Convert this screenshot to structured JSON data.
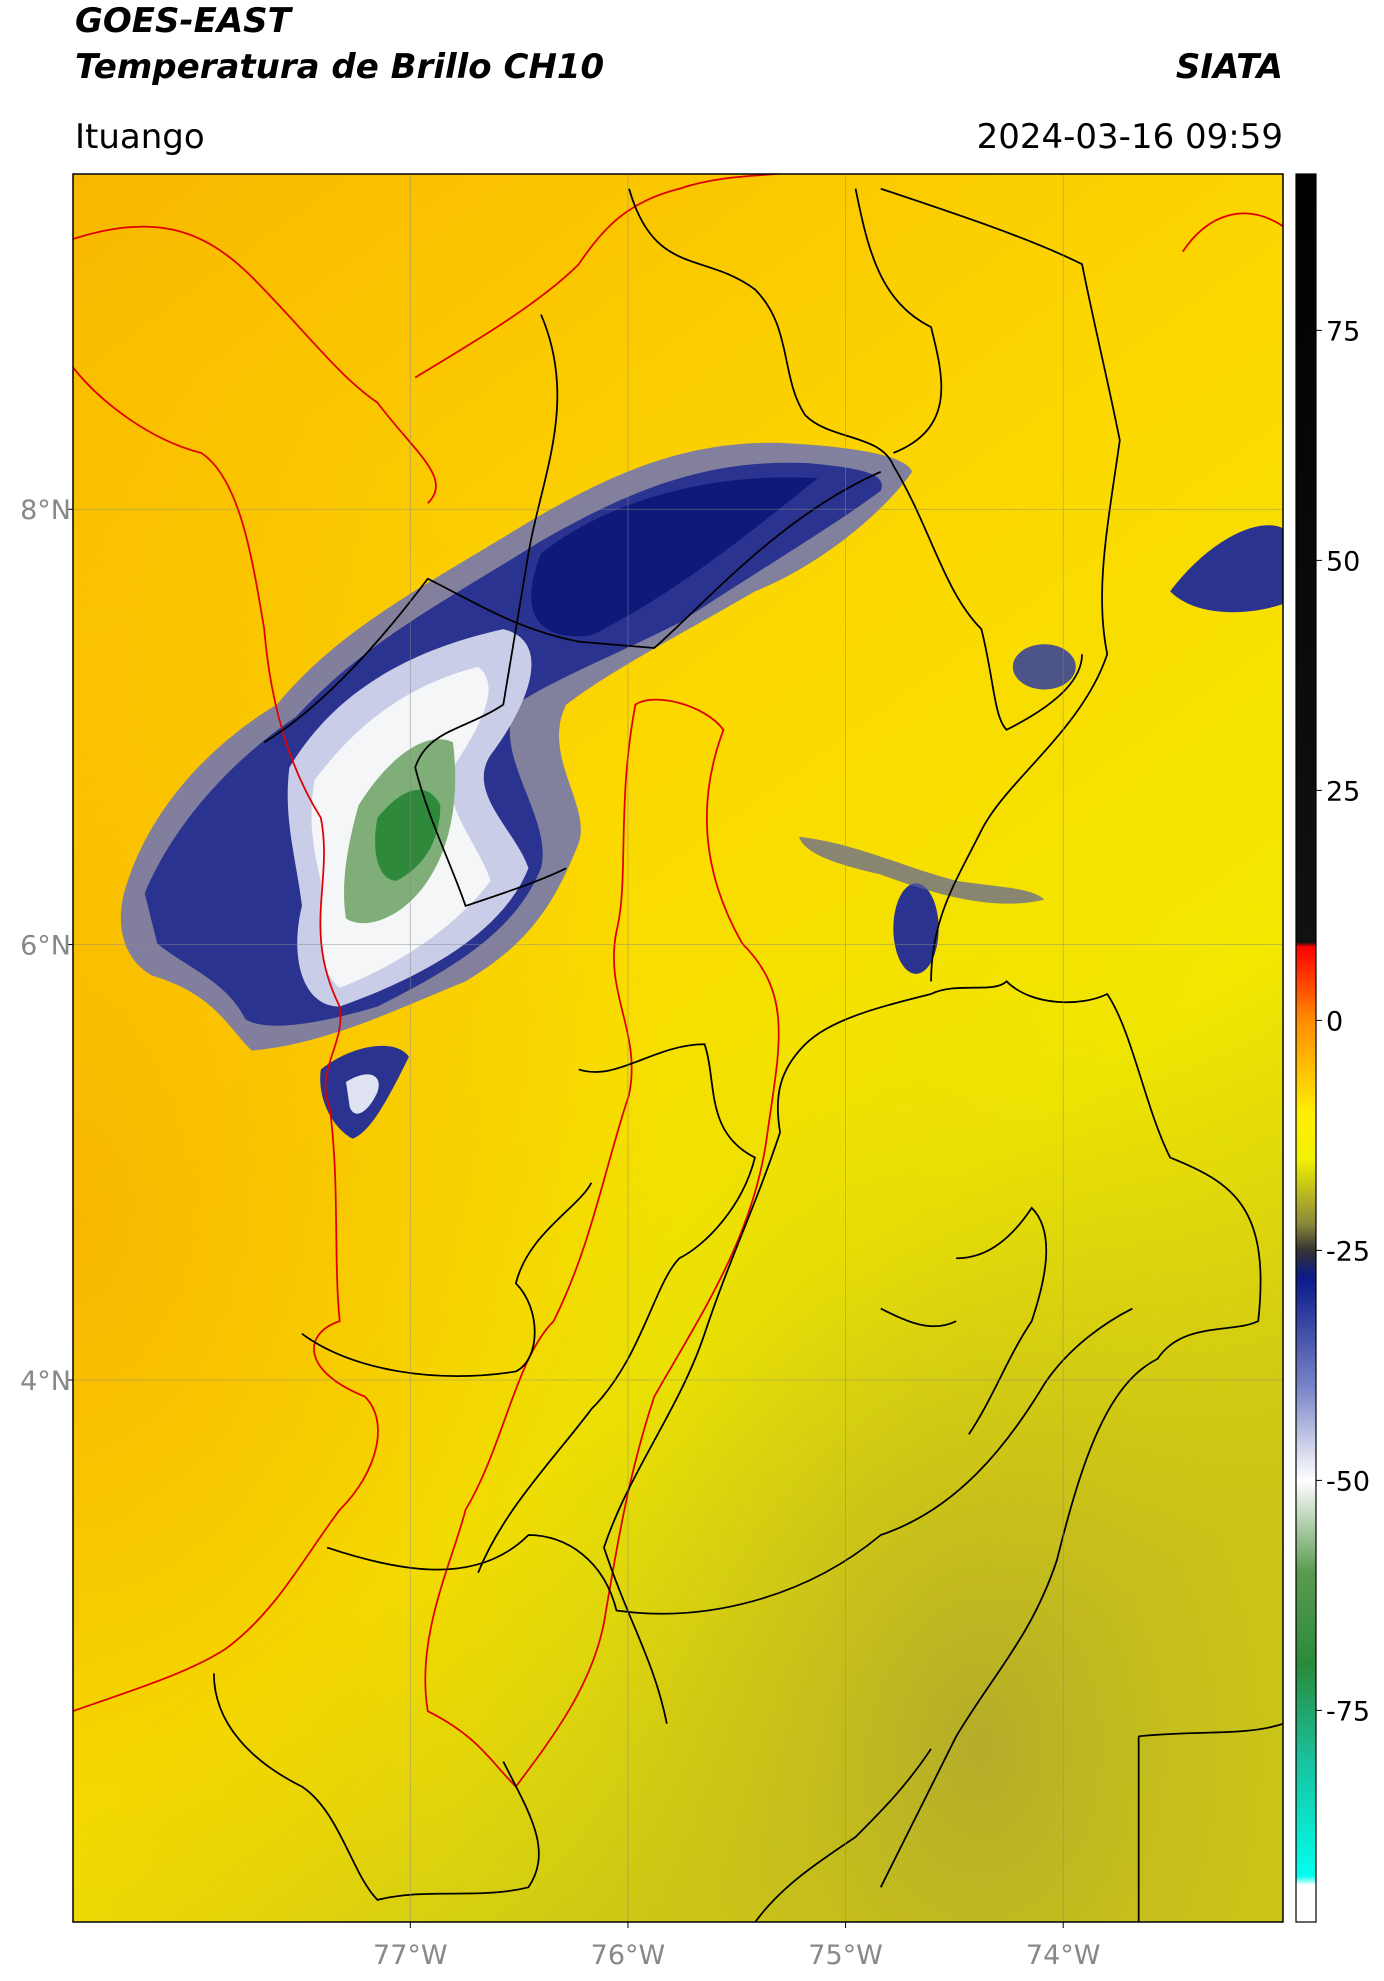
{
  "header": {
    "satellite": "GOES-EAST",
    "title": "Temperatura de Brillo CH10",
    "source": "SIATA",
    "region": "Ituango",
    "datetime": "2024-03-16 09:59"
  },
  "map": {
    "xlim": [
      -78.55,
      -72.99
    ],
    "ylim": [
      1.51,
      9.54
    ],
    "xticks": [
      {
        "value": -77,
        "label": "77°W"
      },
      {
        "value": -76,
        "label": "76°W"
      },
      {
        "value": -75,
        "label": "75°W"
      },
      {
        "value": -74,
        "label": "74°W"
      }
    ],
    "yticks": [
      {
        "value": 8,
        "label": "8°N"
      },
      {
        "value": 6,
        "label": "6°N"
      },
      {
        "value": 4,
        "label": "4°N"
      }
    ],
    "grid": true
  },
  "colorbar": {
    "clim": [
      -98,
      92
    ],
    "ticks": [
      75,
      50,
      25,
      0,
      -25,
      -50,
      -75
    ],
    "colormap": [
      {
        "value": 92,
        "color": "#000000"
      },
      {
        "value": 8.5,
        "color": "#111111"
      },
      {
        "value": 8,
        "color": "#ff0000"
      },
      {
        "value": 0,
        "color": "#ff8c00"
      },
      {
        "value": -10,
        "color": "#ffee00"
      },
      {
        "value": -15,
        "color": "#f2f200"
      },
      {
        "value": -22,
        "color": "#8c8a3a"
      },
      {
        "value": -25,
        "color": "#333333"
      },
      {
        "value": -28,
        "color": "#0a1a8a"
      },
      {
        "value": -40,
        "color": "#7a86c8"
      },
      {
        "value": -50,
        "color": "#ffffff"
      },
      {
        "value": -60,
        "color": "#5a9a50"
      },
      {
        "value": -70,
        "color": "#2a8a3a"
      },
      {
        "value": -80,
        "color": "#1abf9a"
      },
      {
        "value": -93,
        "color": "#00ffee"
      },
      {
        "value": -94,
        "color": "#ffffff"
      },
      {
        "value": -98,
        "color": "#ffffff"
      }
    ]
  }
}
